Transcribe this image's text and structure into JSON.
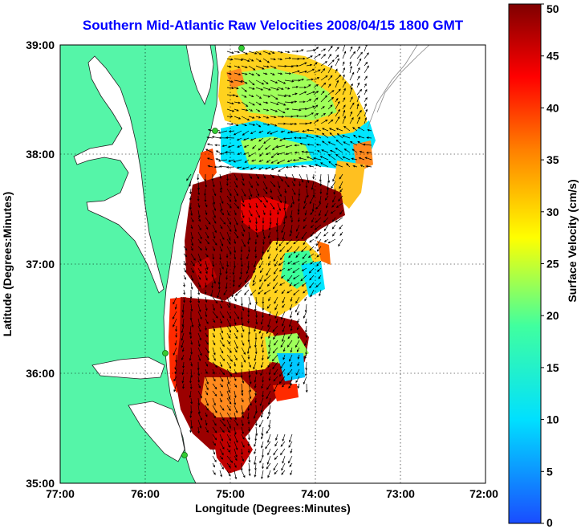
{
  "title": "Southern Mid-Atlantic Raw Velocities 2008/04/15 1800 GMT",
  "x_axis": {
    "label": "Longitude (Degrees:Minutes)",
    "ticks": [
      "77:00",
      "76:00",
      "75:00",
      "74:00",
      "73:00",
      "72:00"
    ]
  },
  "y_axis": {
    "label": "Latitude (Degrees:Minutes)",
    "ticks": [
      "39:00",
      "38:00",
      "37:00",
      "36:00",
      "35:00"
    ]
  },
  "colorbar": {
    "label": "Surface Velocity (cm/s)",
    "ticks": [
      "50",
      "45",
      "40",
      "35",
      "30",
      "25",
      "20",
      "15",
      "10",
      "5",
      "0"
    ],
    "range": [
      0,
      50
    ],
    "colormap": [
      "#1a4cff",
      "#00e0ff",
      "#40ff9f",
      "#ffff00",
      "#ff7f00",
      "#ff0000",
      "#7f0000"
    ]
  },
  "colors": {
    "land": "#55f5a8",
    "water": "#ffffff",
    "title": "#0000ff",
    "station_marker": "#33cc33"
  }
}
